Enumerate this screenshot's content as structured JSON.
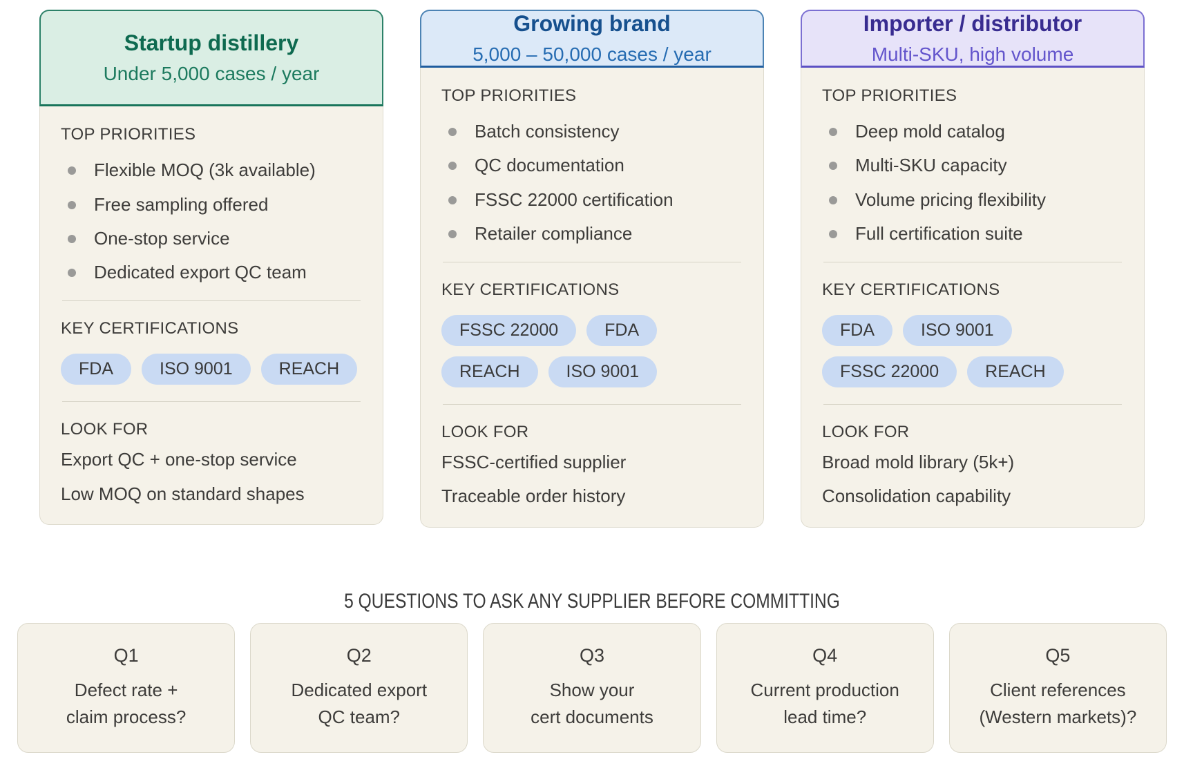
{
  "theme": {
    "page_bg": "#ffffff",
    "text": "#3d3c3a",
    "body_bg": "#f5f2e9",
    "card_border": "#dedbce",
    "divider": "#d6d3c6",
    "bullet": "#9a9a98",
    "badge_bg": "#c9daf3",
    "badge_text": "#3a3a3a",
    "heading_text": "#3a3a3a",
    "qbox_bg": "#f5f2e9",
    "qbox_border": "#dbd8ca"
  },
  "cards": [
    {
      "title": "Startup distillery",
      "subtitle": "Under 5,000 cases / year",
      "priorities_label": "TOP PRIORITIES",
      "priorities": [
        "Flexible MOQ (3k available)",
        "Free sampling offered",
        "One-stop service",
        "Dedicated export QC team"
      ],
      "certifications_label": "KEY CERTIFICATIONS",
      "certifications": [
        "FDA",
        "ISO 9001",
        "REACH"
      ],
      "look_for_label": "LOOK FOR",
      "look_for": [
        "Export QC + one-stop service",
        "Low MOQ on standard shapes"
      ],
      "colors": {
        "header_bg": "#daeee4",
        "border": "#2c8168",
        "rule": "#18745a",
        "title": "#0e6a50",
        "subtitle": "#1c7a5e"
      }
    },
    {
      "title": "Growing brand",
      "subtitle": "5,000 – 50,000 cases / year",
      "priorities_label": "TOP PRIORITIES",
      "priorities": [
        "Batch consistency",
        "QC documentation",
        "FSSC 22000 certification",
        "Retailer compliance"
      ],
      "certifications_label": "KEY CERTIFICATIONS",
      "certifications": [
        "FSSC 22000",
        "FDA",
        "REACH",
        "ISO 9001"
      ],
      "look_for_label": "LOOK FOR",
      "look_for": [
        "FSSC-certified supplier",
        "Traceable order history"
      ],
      "colors": {
        "header_bg": "#dce9f8",
        "border": "#4c83b4",
        "rule": "#1e5c9e",
        "title": "#16508e",
        "subtitle": "#266cb2"
      }
    },
    {
      "title": "Importer / distributor",
      "subtitle": "Multi-SKU, high volume",
      "priorities_label": "TOP PRIORITIES",
      "priorities": [
        "Deep mold catalog",
        "Multi-SKU capacity",
        "Volume pricing flexibility",
        "Full certification suite"
      ],
      "certifications_label": "KEY CERTIFICATIONS",
      "certifications": [
        "FDA",
        "ISO 9001",
        "FSSC 22000",
        "REACH"
      ],
      "look_for_label": "LOOK FOR",
      "look_for": [
        "Broad mold library (5k+)",
        "Consolidation capability"
      ],
      "colors": {
        "header_bg": "#e7e3f9",
        "border": "#7b6fd2",
        "rule": "#5c50c4",
        "title": "#382c90",
        "subtitle": "#6355cc"
      }
    }
  ],
  "questions_heading": "5 QUESTIONS TO ASK ANY SUPPLIER BEFORE COMMITTING",
  "questions": [
    {
      "id": "Q1",
      "lines": [
        "Defect rate +",
        "claim process?"
      ]
    },
    {
      "id": "Q2",
      "lines": [
        "Dedicated export",
        "QC team?"
      ]
    },
    {
      "id": "Q3",
      "lines": [
        "Show your",
        "cert documents"
      ]
    },
    {
      "id": "Q4",
      "lines": [
        "Current production",
        "lead time?"
      ]
    },
    {
      "id": "Q5",
      "lines": [
        "Client references",
        "(Western markets)?"
      ]
    }
  ]
}
